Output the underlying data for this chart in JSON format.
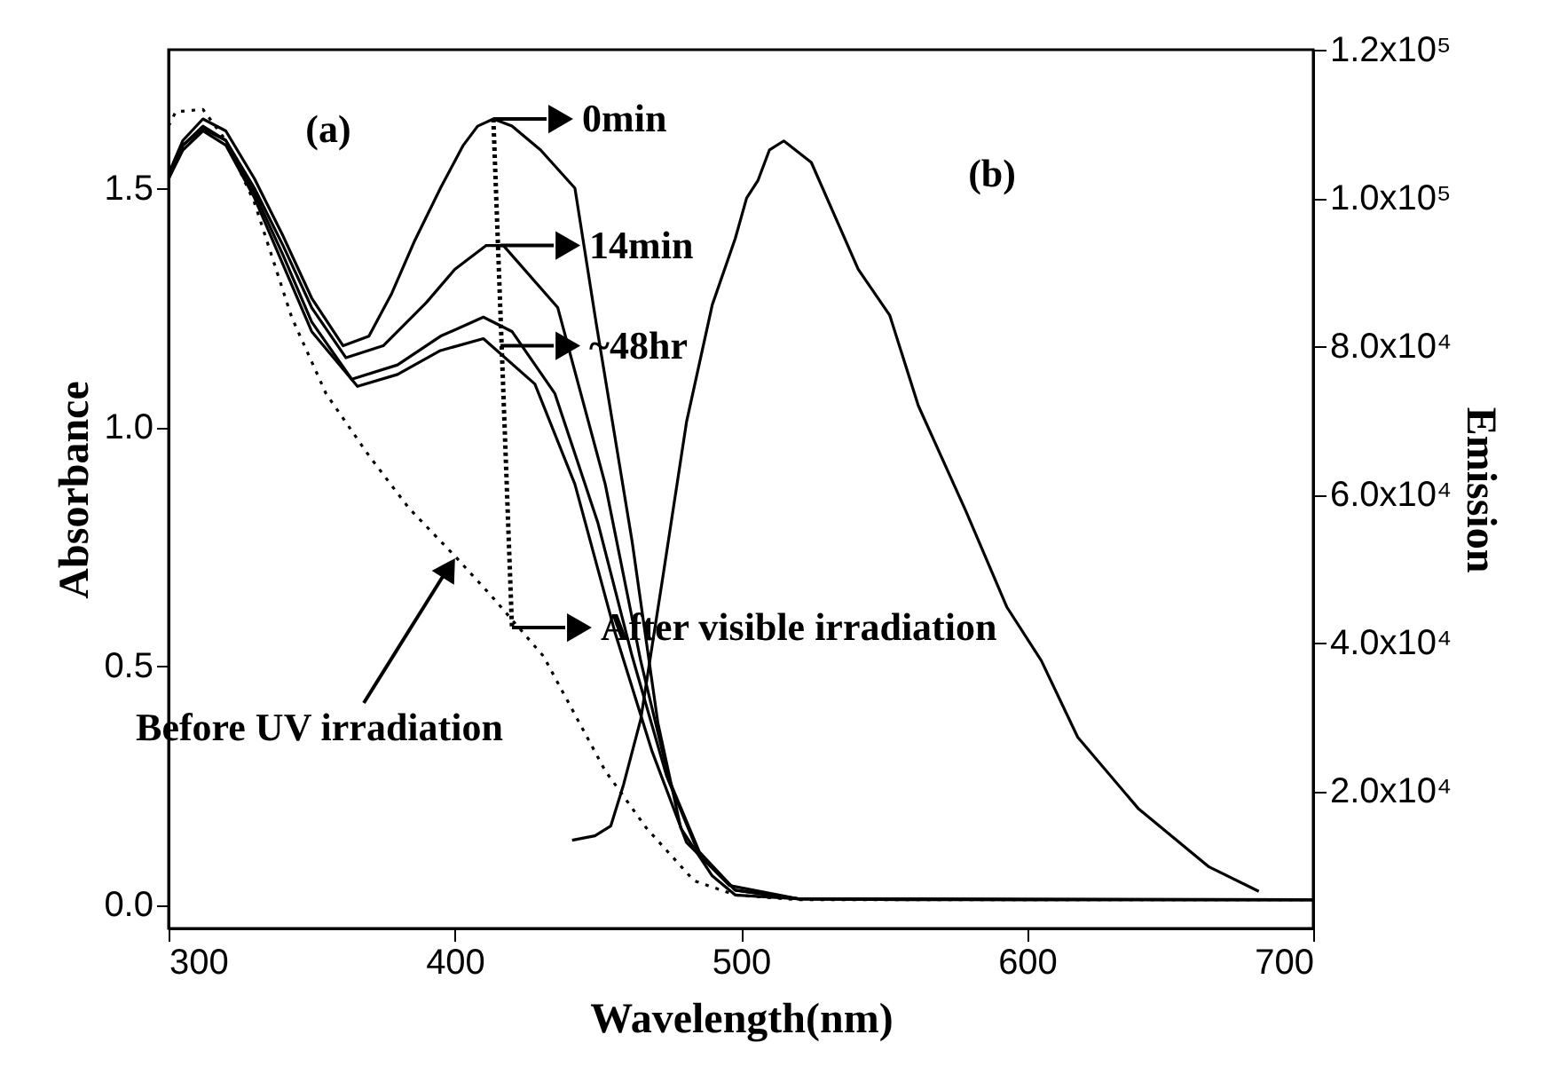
{
  "chart_data": {
    "type": "line",
    "xlabel": "Wavelength(nm)",
    "ylabel": "Absorbance",
    "y2label": "Emission",
    "xlim": [
      300,
      700
    ],
    "xticks": [
      300,
      400,
      500,
      600,
      700
    ],
    "ylim": [
      -0.05,
      1.79
    ],
    "yticks": [
      {
        "value": 0,
        "label": "0.0"
      },
      {
        "value": 0.5,
        "label": "0.5"
      },
      {
        "value": 1,
        "label": "1.0"
      },
      {
        "value": 1.5,
        "label": "1.5"
      }
    ],
    "y2lim": [
      1500,
      120000
    ],
    "y2ticks": [
      {
        "value": 20000,
        "label": "2.0x10⁴"
      },
      {
        "value": 40000,
        "label": "4.0x10⁴"
      },
      {
        "value": 60000,
        "label": "6.0x10⁴"
      },
      {
        "value": 80000,
        "label": "8.0x10⁴"
      },
      {
        "value": 100000,
        "label": "1.0x10⁵"
      },
      {
        "value": 120000,
        "label": "1.2x10⁵"
      }
    ],
    "grid": false,
    "series": [
      {
        "color": "#000000",
        "line_style": "solid",
        "x": [
          300,
          305,
          312,
          320,
          330,
          340,
          350,
          361,
          370,
          378,
          386,
          395,
          403,
          408,
          413.5,
          420,
          430,
          442,
          449.5,
          462,
          471,
          479,
          490,
          498,
          520,
          560,
          600,
          650,
          700
        ],
        "values": [
          1.53,
          1.6,
          1.645,
          1.62,
          1.52,
          1.4,
          1.27,
          1.17,
          1.19,
          1.28,
          1.39,
          1.5,
          1.59,
          1.63,
          1.645,
          1.63,
          1.58,
          1.5,
          1.215,
          0.76,
          0.38,
          0.16,
          0.06,
          0.02,
          0.012,
          0.01,
          0.01,
          0.01,
          0.01
        ]
      },
      {
        "color": "#000000",
        "line_style": "solid",
        "x": [
          300,
          305,
          312,
          320,
          330,
          340,
          350,
          362,
          375,
          390,
          400,
          411,
          417,
          436,
          452.6,
          465,
          475,
          485.5,
          498,
          520,
          600,
          700
        ],
        "values": [
          1.52,
          1.59,
          1.63,
          1.6,
          1.5,
          1.38,
          1.25,
          1.145,
          1.17,
          1.26,
          1.33,
          1.38,
          1.38,
          1.25,
          0.88,
          0.51,
          0.26,
          0.11,
          0.03,
          0.012,
          0.01,
          0.01
        ]
      },
      {
        "color": "#000000",
        "line_style": "solid",
        "x": [
          300,
          305,
          312,
          320,
          330,
          340,
          350,
          364,
          380,
          395,
          410,
          420,
          435,
          450,
          462,
          474,
          485,
          498,
          520,
          700
        ],
        "values": [
          1.52,
          1.59,
          1.625,
          1.6,
          1.49,
          1.36,
          1.22,
          1.1,
          1.13,
          1.19,
          1.23,
          1.2,
          1.07,
          0.8,
          0.52,
          0.27,
          0.11,
          0.03,
          0.012,
          0.01
        ]
      },
      {
        "color": "#000000",
        "line_style": "solid",
        "x": [
          300,
          305,
          312,
          320,
          330,
          340,
          350,
          366,
          380,
          395,
          410,
          428,
          442,
          456,
          469,
          481,
          496,
          520,
          700
        ],
        "values": [
          1.52,
          1.58,
          1.62,
          1.59,
          1.48,
          1.34,
          1.2,
          1.085,
          1.11,
          1.16,
          1.185,
          1.09,
          0.88,
          0.57,
          0.32,
          0.13,
          0.04,
          0.012,
          0.01
        ]
      },
      {
        "color": "#000000",
        "line_style": "dotted",
        "x": [
          300,
          302.5,
          312,
          320,
          330,
          343,
          355,
          370,
          384,
          400,
          413,
          431,
          452.6,
          467,
          483.6,
          498,
          520,
          700
        ],
        "values": [
          1.63,
          1.66,
          1.665,
          1.6,
          1.47,
          1.23,
          1.07,
          0.94,
          0.83,
          0.73,
          0.645,
          0.52,
          0.28,
          0.16,
          0.05,
          0.02,
          0.01,
          0.01
        ]
      },
      {
        "color": "#000000",
        "line_style": "solid",
        "axis": "y2",
        "x": [
          441,
          449,
          454.5,
          459,
          465,
          473,
          481,
          490,
          498,
          502,
          506,
          510,
          515,
          524.6,
          541,
          552,
          562,
          578.6,
          593,
          605,
          617.7,
          638.8,
          663.6,
          681
        ],
        "values": [
          13400,
          14000,
          15300,
          20900,
          29700,
          49600,
          69800,
          85600,
          94500,
          100000,
          102400,
          106500,
          107700,
          104800,
          90400,
          84200,
          72000,
          57800,
          44800,
          37600,
          27300,
          17700,
          9800,
          6500
        ]
      }
    ],
    "annotations": [
      {
        "text": "0min",
        "x": 413.5,
        "y": 1.645
      },
      {
        "text": "14min",
        "x": 416,
        "y": 1.38
      },
      {
        "text": "~48hr",
        "x": 416,
        "y": 1.17
      },
      {
        "text": "After visible irradiation",
        "x": 420,
        "y": 0.58
      },
      "(a)",
      "(b)",
      "Before UV irradiation"
    ]
  }
}
